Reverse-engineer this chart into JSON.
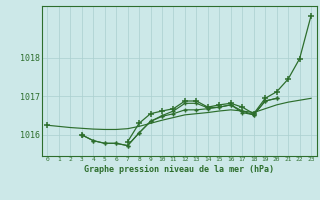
{
  "hours": [
    0,
    1,
    2,
    3,
    4,
    5,
    6,
    7,
    8,
    9,
    10,
    11,
    12,
    13,
    14,
    15,
    16,
    17,
    18,
    19,
    20,
    21,
    22,
    23
  ],
  "series_smooth": [
    1016.25,
    1016.22,
    1016.19,
    1016.17,
    1016.15,
    1016.14,
    1016.14,
    1016.16,
    1016.22,
    1016.3,
    1016.38,
    1016.45,
    1016.52,
    1016.55,
    1016.58,
    1016.62,
    1016.65,
    1016.62,
    1016.58,
    1016.68,
    1016.78,
    1016.85,
    1016.9,
    1016.95
  ],
  "series_dip": [
    null,
    null,
    null,
    1016.0,
    1015.85,
    1015.78,
    1015.78,
    1015.72,
    1016.05,
    1016.35,
    1016.48,
    1016.55,
    1016.65,
    1016.65,
    1016.68,
    1016.72,
    1016.78,
    1016.58,
    1016.52,
    1016.88,
    1016.95,
    null,
    null,
    null
  ],
  "series_dip2": [
    null,
    null,
    null,
    1016.0,
    1015.85,
    1015.78,
    1015.78,
    1015.72,
    1016.05,
    1016.35,
    1016.5,
    1016.62,
    1016.82,
    1016.82,
    1016.7,
    1016.72,
    1016.78,
    1016.62,
    1016.52,
    1016.88,
    1016.95,
    null,
    null,
    null
  ],
  "series_main": [
    1016.25,
    null,
    null,
    1016.0,
    null,
    null,
    null,
    1015.82,
    1016.3,
    1016.55,
    1016.62,
    1016.68,
    1016.88,
    1016.88,
    1016.72,
    1016.78,
    1016.82,
    1016.72,
    1016.55,
    1016.95,
    1017.12,
    1017.45,
    1017.98,
    1019.1
  ],
  "background_color": "#cce8e8",
  "grid_color": "#aacfcf",
  "line_color": "#2d6e2d",
  "title": "Graphe pression niveau de la mer (hPa)",
  "ylim": [
    1015.45,
    1019.35
  ],
  "yticks": [
    1016,
    1017,
    1018
  ],
  "xticks": [
    0,
    1,
    2,
    3,
    4,
    5,
    6,
    7,
    8,
    9,
    10,
    11,
    12,
    13,
    14,
    15,
    16,
    17,
    18,
    19,
    20,
    21,
    22,
    23
  ]
}
